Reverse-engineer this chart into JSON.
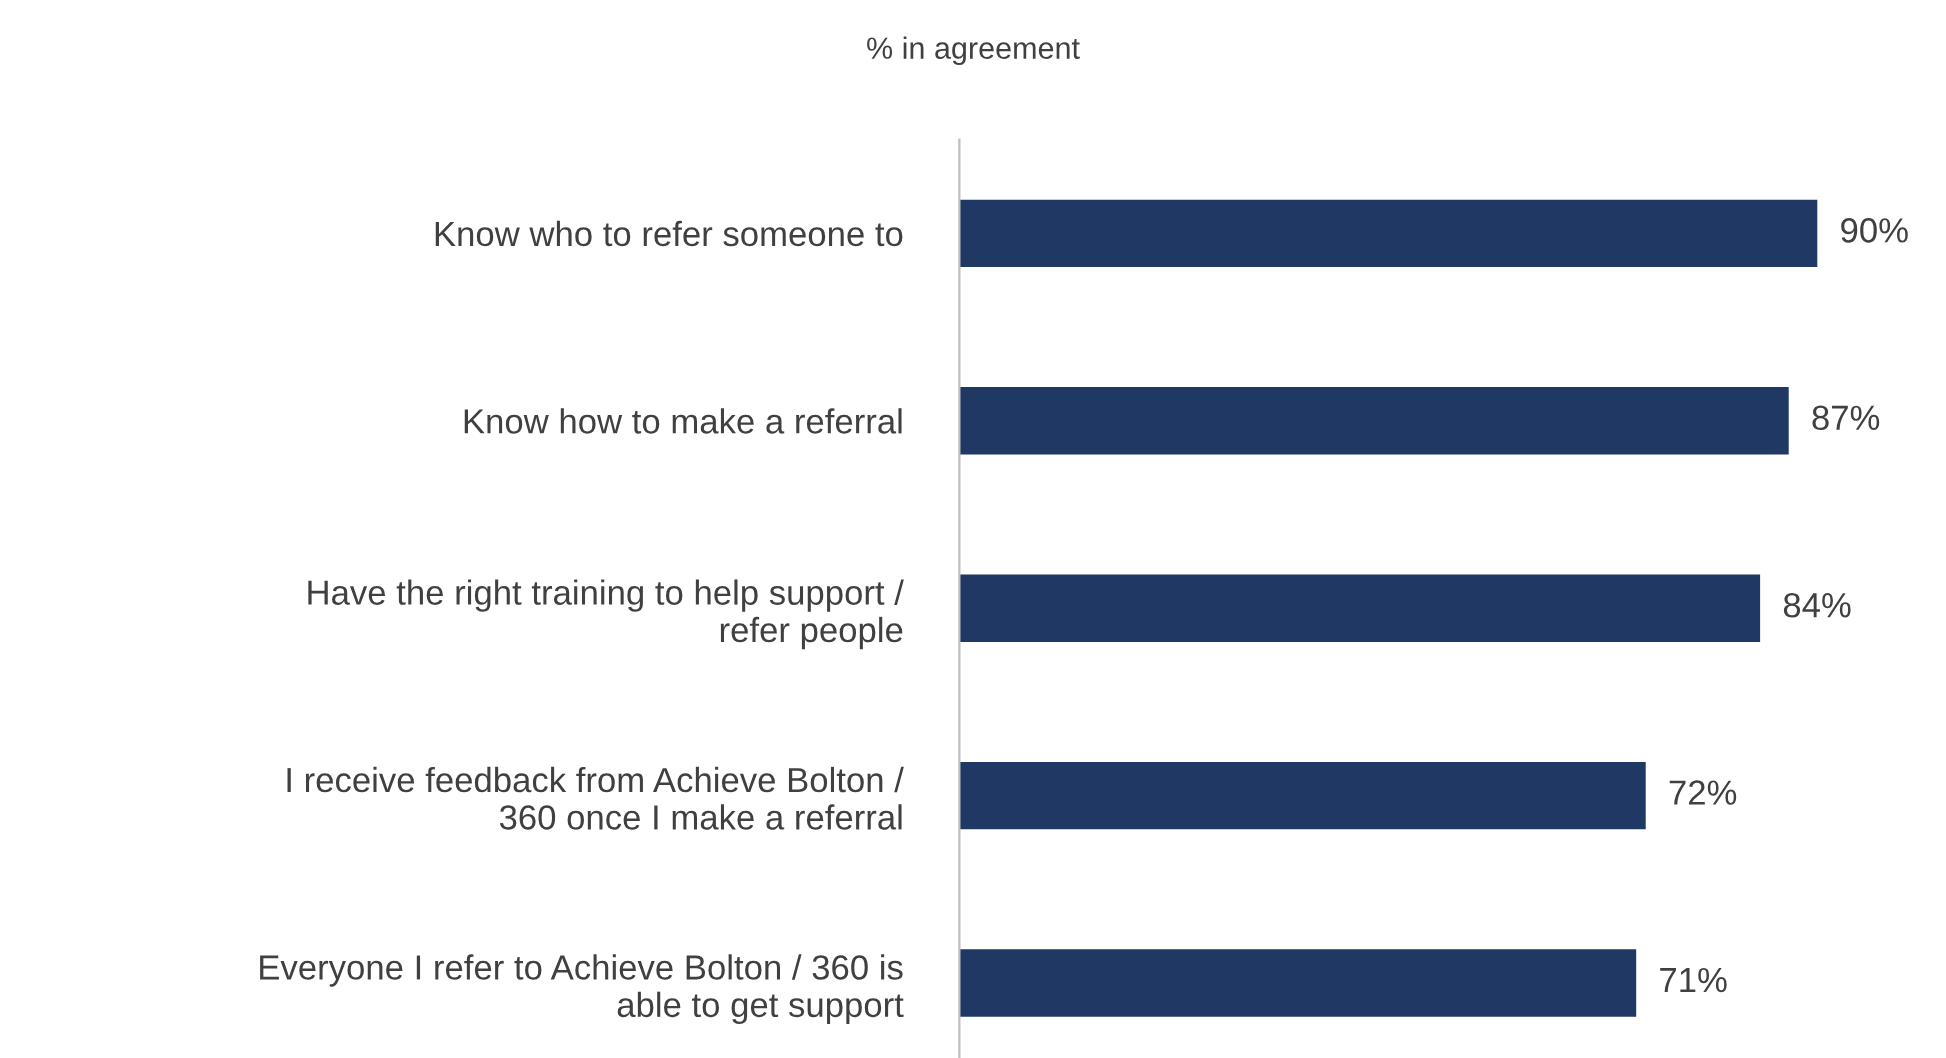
{
  "chart_data": {
    "type": "bar",
    "orientation": "horizontal",
    "title": "% in agreement",
    "categories": [
      "Know who to refer someone to",
      "Know how to make a referral",
      "Have the right training to help support /\nrefer people",
      "I receive feedback from Achieve Bolton /\n360 once I make a referral",
      "Everyone I refer to Achieve Bolton / 360 is\nable to get support"
    ],
    "values": [
      90,
      87,
      84,
      72,
      71
    ],
    "value_labels": [
      "90%",
      "87%",
      "84%",
      "72%",
      "71%"
    ],
    "color": "#1f3864",
    "grid": false,
    "legend": false
  }
}
